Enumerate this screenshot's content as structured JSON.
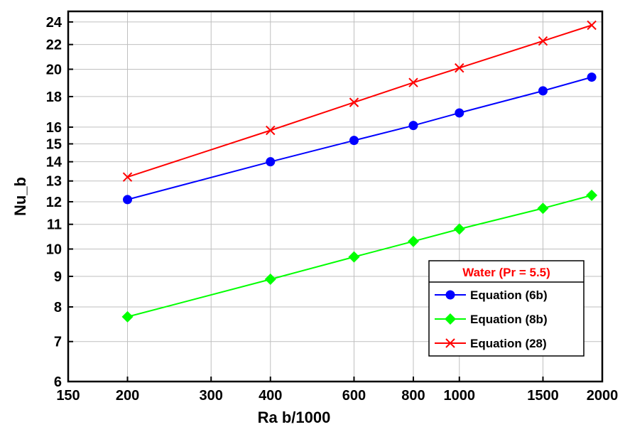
{
  "chart_data": {
    "type": "line",
    "title": "",
    "xlabel": "Ra  b/1000",
    "ylabel": "Nu_b",
    "xscale": "log",
    "yscale": "log",
    "xlim": [
      150,
      2000
    ],
    "ylim": [
      6,
      25
    ],
    "xticks": [
      150,
      200,
      300,
      400,
      600,
      800,
      1000,
      1500,
      2000
    ],
    "xtick_labels": [
      "150",
      "200",
      "300",
      "400",
      "600",
      "800",
      "1000",
      "1500",
      "2000"
    ],
    "yticks": [
      6,
      7,
      8,
      9,
      10,
      11,
      12,
      13,
      14,
      15,
      16,
      18,
      20,
      22,
      24
    ],
    "ytick_labels": [
      "6",
      "7",
      "8",
      "9",
      "10",
      "11",
      "12",
      "13",
      "14",
      "15",
      "16",
      "18",
      "20",
      "22",
      "24"
    ],
    "grid": true,
    "legend_title": "Water (Pr = 5.5)",
    "legend_position": "bottom-right",
    "x": [
      200,
      400,
      600,
      800,
      1000,
      1500,
      1900
    ],
    "series": [
      {
        "name": "Equation (6b)",
        "color": "#0000ff",
        "marker": "circle",
        "values": [
          12.1,
          14.0,
          15.2,
          16.1,
          16.9,
          18.4,
          19.4
        ]
      },
      {
        "name": "Equation (8b)",
        "color": "#00ff00",
        "marker": "diamond",
        "values": [
          7.7,
          8.9,
          9.7,
          10.3,
          10.8,
          11.7,
          12.3
        ]
      },
      {
        "name": "Equation (28)",
        "color": "#ff0000",
        "marker": "x",
        "values": [
          13.2,
          15.8,
          17.6,
          19.0,
          20.1,
          22.3,
          23.7
        ]
      }
    ],
    "colors": {
      "legend_title": "#ff0000",
      "grid": "#bfbfbf",
      "axis": "#000000"
    }
  }
}
